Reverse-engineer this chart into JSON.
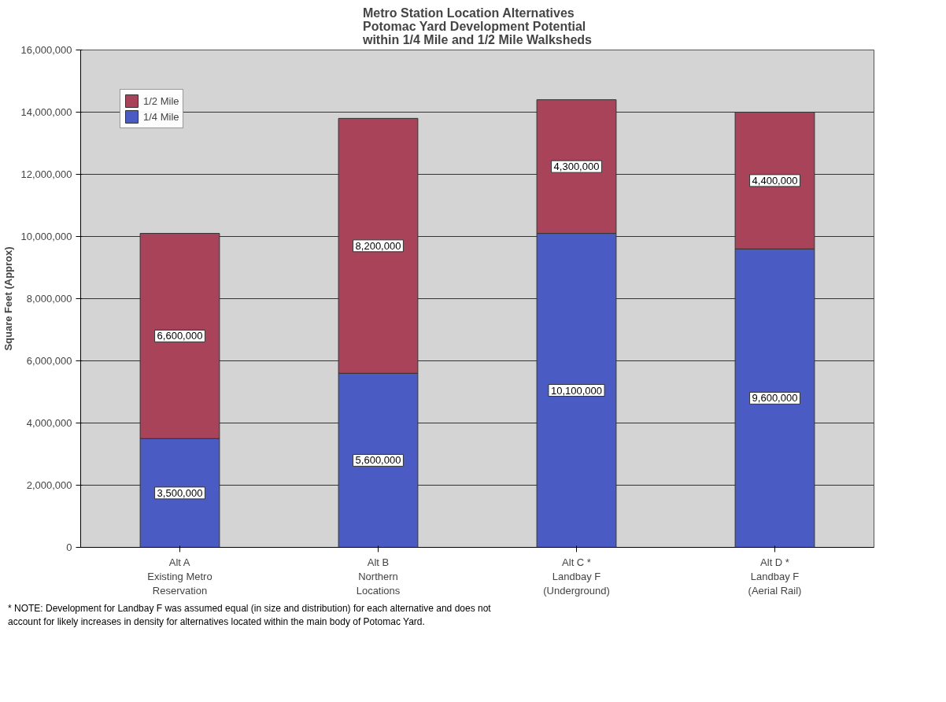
{
  "chart_data": {
    "type": "bar",
    "stacked": true,
    "title": "Metro Station Location Alternatives\nPotomac Yard Development Potential\nwithin 1/4 Mile and 1/2 Mile Walksheds",
    "ylabel": "Square Feet (Approx)",
    "categories": [
      "Alt A\nExisting Metro\nReservation",
      "Alt B\nNorthern\nLocations",
      "Alt C *\nLandbay F\n(Underground)",
      "Alt D *\nLandbay F\n(Aerial Rail)"
    ],
    "series": [
      {
        "name": "1/4 Mile",
        "color": "#4a5cc4",
        "values": [
          3500000,
          5600000,
          10100000,
          9600000
        ],
        "value_labels": [
          "3,500,000",
          "5,600,000",
          "10,100,000",
          "9,600,000"
        ]
      },
      {
        "name": "1/2 Mile",
        "color": "#a8435a",
        "values": [
          6600000,
          8200000,
          4300000,
          4400000
        ],
        "value_labels": [
          "6,600,000",
          "8,200,000",
          "4,300,000",
          "4,400,000"
        ]
      }
    ],
    "ylim": [
      0,
      16000000
    ],
    "yticks": [
      {
        "value": 0,
        "label": "0"
      },
      {
        "value": 2000000,
        "label": "2,000,000"
      },
      {
        "value": 4000000,
        "label": "4,000,000"
      },
      {
        "value": 6000000,
        "label": "6,000,000"
      },
      {
        "value": 8000000,
        "label": "8,000,000"
      },
      {
        "value": 10000000,
        "label": "10,000,000"
      },
      {
        "value": 12000000,
        "label": "12,000,000"
      },
      {
        "value": 14000000,
        "label": "14,000,000"
      },
      {
        "value": 16000000,
        "label": "16,000,000"
      }
    ],
    "grid": "y",
    "legend": "top left",
    "annotations": [
      "* NOTE: Development for Landbay F was assumed equal (in size and distribution) for each alternative and does not\naccount for likely increases in density for alternatives located within the main body of Potomac Yard."
    ]
  }
}
